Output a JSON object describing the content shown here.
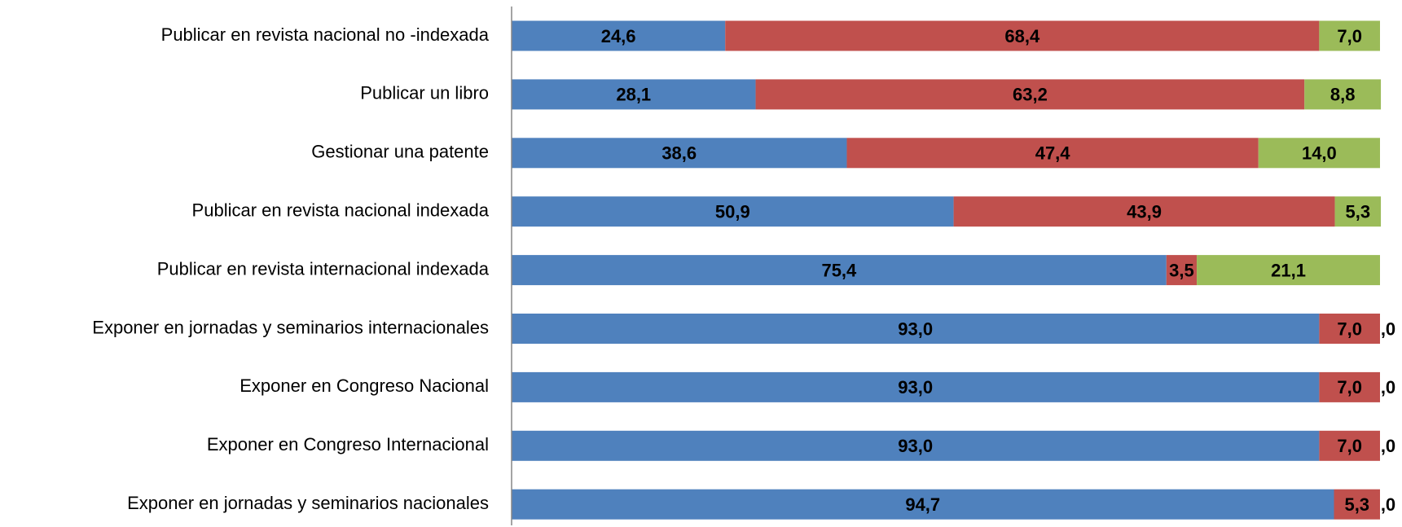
{
  "chart_data": {
    "type": "stacked_barh",
    "categories": [
      "Publicar en revista nacional no -indexada",
      "Publicar un libro",
      "Gestionar una patente",
      "Publicar en revista nacional indexada",
      "Publicar en revista internacional indexada",
      "Exponer en jornadas y seminarios internacionales",
      "Exponer en Congreso Nacional",
      "Exponer en Congreso Internacional",
      "Exponer en jornadas y seminarios nacionales"
    ],
    "series": [
      {
        "color": "#4f81bd",
        "values": [
          24.6,
          28.1,
          38.6,
          50.9,
          75.4,
          93.0,
          93.0,
          93.0,
          94.7
        ],
        "value_labels": [
          "24,6",
          "28,1",
          "38,6",
          "50,9",
          "75,4",
          "93,0",
          "93,0",
          "93,0",
          "94,7"
        ]
      },
      {
        "color": "#c0504d",
        "values": [
          68.4,
          63.2,
          47.4,
          43.9,
          3.5,
          7.0,
          7.0,
          7.0,
          5.3
        ],
        "value_labels": [
          "68,4",
          "63,2",
          "47,4",
          "43,9",
          "3,5",
          "7,0",
          "7,0",
          "7,0",
          "5,3"
        ]
      },
      {
        "color": "#9bbb59",
        "values": [
          7.0,
          8.8,
          14.0,
          5.3,
          21.1,
          0,
          0,
          0,
          0
        ],
        "value_labels": [
          "7,0",
          "8,8",
          "14,0",
          "5,3",
          "21,1",
          ",0",
          ",0",
          ",0",
          ",0"
        ]
      }
    ],
    "xlim": [
      0,
      100
    ]
  }
}
